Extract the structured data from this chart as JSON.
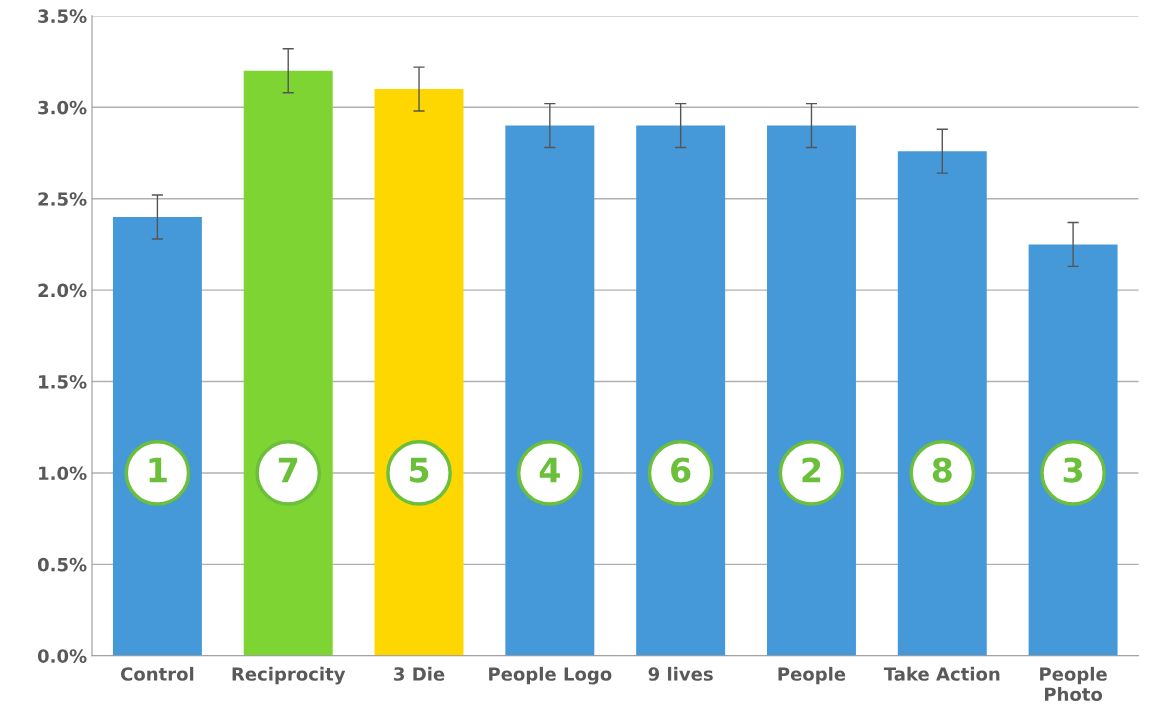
{
  "chart_data": {
    "type": "bar",
    "categories": [
      "Control",
      "Reciprocity",
      "3 Die",
      "People Logo",
      "9 lives",
      "People",
      "Take Action",
      "People\nPhoto"
    ],
    "values": [
      2.4,
      3.2,
      3.1,
      2.9,
      2.9,
      2.9,
      2.76,
      2.25
    ],
    "errors": [
      0.12,
      0.12,
      0.12,
      0.12,
      0.12,
      0.12,
      0.12,
      0.12
    ],
    "colors": [
      "#4599d9",
      "#7ed432",
      "#ffd700",
      "#4599d9",
      "#4599d9",
      "#4599d9",
      "#4599d9",
      "#4599d9"
    ],
    "ylim": [
      0,
      3.5
    ],
    "yticks": [
      {
        "value": 0,
        "label": "0.0%"
      },
      {
        "value": 0.5,
        "label": "0.5%"
      },
      {
        "value": 1.0,
        "label": "1.0%"
      },
      {
        "value": 1.5,
        "label": "1.5%"
      },
      {
        "value": 2.0,
        "label": "2.0%"
      },
      {
        "value": 2.5,
        "label": "2.5%"
      },
      {
        "value": 3.0,
        "label": "3.0%"
      },
      {
        "value": 3.5,
        "label": "3.5%"
      }
    ],
    "grid": "y",
    "annotations": [
      "1",
      "7",
      "5",
      "4",
      "6",
      "2",
      "8",
      "3"
    ]
  }
}
